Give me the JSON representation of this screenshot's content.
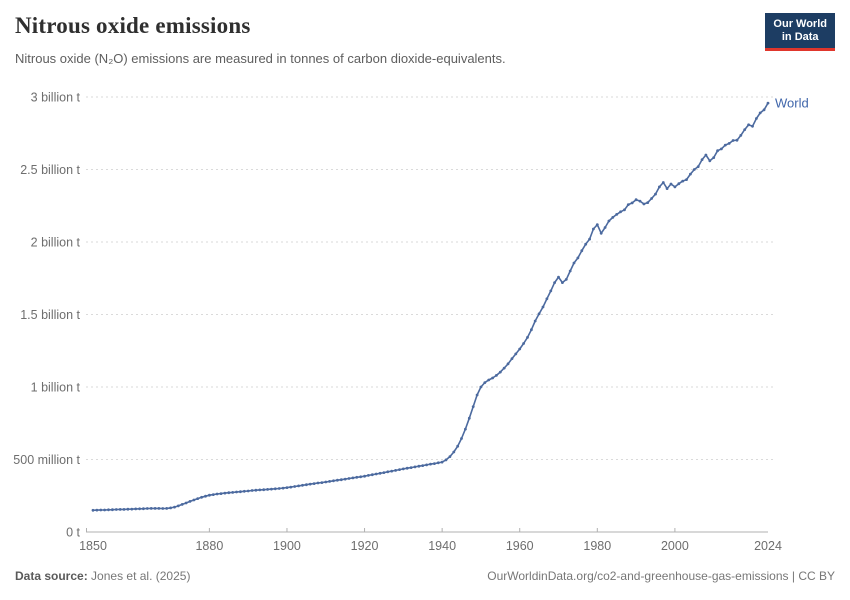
{
  "header": {
    "title": "Nitrous oxide emissions",
    "subtitle": "Nitrous oxide (N₂O) emissions are measured in tonnes of carbon dioxide-equivalents."
  },
  "logo": {
    "line1": "Our World",
    "line2": "in Data"
  },
  "footer": {
    "source_label": "Data source:",
    "source": "Jones et al. (2025)",
    "url": "OurWorldinData.org/co2-and-greenhouse-gas-emissions",
    "separator": " | ",
    "license": "CC BY"
  },
  "colors": {
    "line": "#4c6a9f",
    "entity_label": "#4066ab",
    "grid": "#dadada",
    "axis": "#b0b0b0",
    "tick_text": "#6e6e6e",
    "logo_bg": "#1d3d63",
    "logo_accent": "#e0362c"
  },
  "chart_data": {
    "type": "line",
    "title": "Nitrous oxide emissions",
    "ylabel": "",
    "xlabel": "",
    "unit": "tonnes of carbon dioxide-equivalents",
    "grid": "horizontal-dashed",
    "legend_position": "end-of-line-label",
    "xlim": [
      1850,
      2024
    ],
    "ylim": [
      0,
      3
    ],
    "x_ticks": [
      1850,
      1880,
      1900,
      1920,
      1940,
      1960,
      1980,
      2000,
      2024
    ],
    "y_ticks": [
      {
        "value": 0,
        "label": "0 t"
      },
      {
        "value": 0.5,
        "label": "500 million t"
      },
      {
        "value": 1,
        "label": "1 billion t"
      },
      {
        "value": 1.5,
        "label": "1.5 billion t"
      },
      {
        "value": 2,
        "label": "2 billion t"
      },
      {
        "value": 2.5,
        "label": "2.5 billion t"
      },
      {
        "value": 3,
        "label": "3 billion t"
      }
    ],
    "y_unit_of_values": "billion tonnes CO2-eq",
    "series": [
      {
        "name": "World",
        "color": "#4c6a9f",
        "years": [
          1850,
          1851,
          1852,
          1853,
          1854,
          1855,
          1856,
          1857,
          1858,
          1859,
          1860,
          1861,
          1862,
          1863,
          1864,
          1865,
          1866,
          1867,
          1868,
          1869,
          1870,
          1871,
          1872,
          1873,
          1874,
          1875,
          1876,
          1877,
          1878,
          1879,
          1880,
          1881,
          1882,
          1883,
          1884,
          1885,
          1886,
          1887,
          1888,
          1889,
          1890,
          1891,
          1892,
          1893,
          1894,
          1895,
          1896,
          1897,
          1898,
          1899,
          1900,
          1901,
          1902,
          1903,
          1904,
          1905,
          1906,
          1907,
          1908,
          1909,
          1910,
          1911,
          1912,
          1913,
          1914,
          1915,
          1916,
          1917,
          1918,
          1919,
          1920,
          1921,
          1922,
          1923,
          1924,
          1925,
          1926,
          1927,
          1928,
          1929,
          1930,
          1931,
          1932,
          1933,
          1934,
          1935,
          1936,
          1937,
          1938,
          1939,
          1940,
          1941,
          1942,
          1943,
          1944,
          1945,
          1946,
          1947,
          1948,
          1949,
          1950,
          1951,
          1952,
          1953,
          1954,
          1955,
          1956,
          1957,
          1958,
          1959,
          1960,
          1961,
          1962,
          1963,
          1964,
          1965,
          1966,
          1967,
          1968,
          1969,
          1970,
          1971,
          1972,
          1973,
          1974,
          1975,
          1976,
          1977,
          1978,
          1979,
          1980,
          1981,
          1982,
          1983,
          1984,
          1985,
          1986,
          1987,
          1988,
          1989,
          1990,
          1991,
          1992,
          1993,
          1994,
          1995,
          1996,
          1997,
          1998,
          1999,
          2000,
          2001,
          2002,
          2003,
          2004,
          2005,
          2006,
          2007,
          2008,
          2009,
          2010,
          2011,
          2012,
          2013,
          2014,
          2015,
          2016,
          2017,
          2018,
          2019,
          2020,
          2021,
          2022,
          2023,
          2024
        ],
        "values": [
          0.15,
          0.151,
          0.152,
          0.152,
          0.153,
          0.154,
          0.155,
          0.156,
          0.156,
          0.157,
          0.158,
          0.159,
          0.16,
          0.161,
          0.162,
          0.163,
          0.163,
          0.163,
          0.162,
          0.163,
          0.166,
          0.172,
          0.18,
          0.19,
          0.2,
          0.211,
          0.221,
          0.23,
          0.239,
          0.247,
          0.254,
          0.258,
          0.262,
          0.265,
          0.268,
          0.271,
          0.273,
          0.276,
          0.278,
          0.281,
          0.283,
          0.286,
          0.288,
          0.29,
          0.292,
          0.294,
          0.296,
          0.298,
          0.3,
          0.303,
          0.306,
          0.31,
          0.314,
          0.318,
          0.322,
          0.326,
          0.33,
          0.334,
          0.338,
          0.341,
          0.345,
          0.349,
          0.353,
          0.357,
          0.361,
          0.365,
          0.369,
          0.373,
          0.377,
          0.381,
          0.385,
          0.39,
          0.395,
          0.4,
          0.405,
          0.41,
          0.415,
          0.42,
          0.425,
          0.43,
          0.435,
          0.44,
          0.444,
          0.449,
          0.454,
          0.458,
          0.463,
          0.468,
          0.472,
          0.477,
          0.482,
          0.497,
          0.52,
          0.552,
          0.592,
          0.645,
          0.71,
          0.785,
          0.865,
          0.945,
          1.0,
          1.03,
          1.048,
          1.062,
          1.08,
          1.103,
          1.13,
          1.16,
          1.196,
          1.228,
          1.262,
          1.3,
          1.342,
          1.395,
          1.455,
          1.505,
          1.552,
          1.608,
          1.663,
          1.72,
          1.758,
          1.72,
          1.742,
          1.8,
          1.855,
          1.89,
          1.94,
          1.985,
          2.02,
          2.09,
          2.12,
          2.06,
          2.1,
          2.145,
          2.17,
          2.19,
          2.208,
          2.222,
          2.258,
          2.27,
          2.292,
          2.282,
          2.262,
          2.272,
          2.3,
          2.33,
          2.38,
          2.41,
          2.368,
          2.4,
          2.38,
          2.402,
          2.42,
          2.43,
          2.468,
          2.5,
          2.52,
          2.568,
          2.6,
          2.56,
          2.582,
          2.63,
          2.642,
          2.668,
          2.68,
          2.7,
          2.702,
          2.735,
          2.775,
          2.808,
          2.798,
          2.852,
          2.89,
          2.912,
          2.958
        ]
      }
    ]
  }
}
